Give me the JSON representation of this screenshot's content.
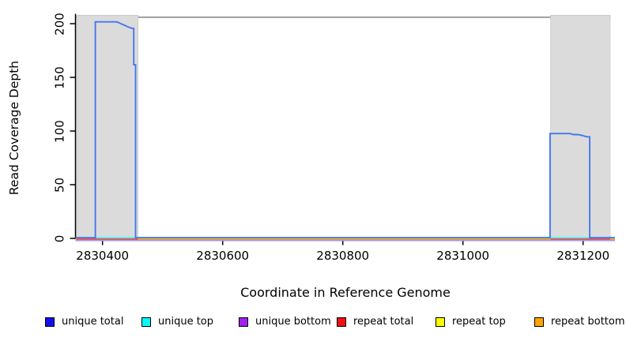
{
  "chart_data": {
    "type": "line",
    "title": "",
    "xlabel": "Coordinate in Reference Genome",
    "ylabel": "Read Coverage Depth",
    "xlim": [
      2830355,
      2831253
    ],
    "ylim": [
      0,
      206
    ],
    "x_ticks": [
      2830400,
      2830600,
      2830800,
      2831000,
      2831200
    ],
    "y_ticks": [
      0,
      50,
      100,
      150,
      200
    ],
    "grid": false,
    "legend_position": "bottom",
    "colors": {
      "unique_total_line": "#4478EF",
      "repeat_total_line": "#ED5252",
      "unique_bottom_line": "#AB93EB",
      "region_fill": "#DBDBDB",
      "region_stroke": "#C6C6C6",
      "top_border": "#8A8A8A",
      "axis": "#000000"
    },
    "repeat_regions": [
      [
        2830357,
        2830459
      ],
      [
        2831146,
        2831245
      ]
    ],
    "series": [
      {
        "name": "unique total",
        "points": [
          [
            2830355,
            0
          ],
          [
            2830388,
            0
          ],
          [
            2830388,
            201
          ],
          [
            2830424,
            201
          ],
          [
            2830428,
            200
          ],
          [
            2830432,
            199
          ],
          [
            2830436,
            198
          ],
          [
            2830440,
            197
          ],
          [
            2830444,
            196
          ],
          [
            2830449,
            195
          ],
          [
            2830452,
            195
          ],
          [
            2830452,
            161
          ],
          [
            2830455,
            161
          ],
          [
            2830455,
            0
          ],
          [
            2831145,
            0
          ],
          [
            2831145,
            97
          ],
          [
            2831178,
            97
          ],
          [
            2831184,
            96
          ],
          [
            2831192,
            96
          ],
          [
            2831200,
            95
          ],
          [
            2831206,
            94
          ],
          [
            2831211,
            94
          ],
          [
            2831211,
            0
          ],
          [
            2831253,
            0
          ]
        ]
      },
      {
        "name": "unique top",
        "points": [
          [
            2830355,
            0
          ],
          [
            2831253,
            0
          ]
        ]
      },
      {
        "name": "unique bottom",
        "points": [
          [
            2830355,
            0
          ],
          [
            2831253,
            0
          ]
        ]
      },
      {
        "name": "repeat total",
        "segments": [
          [
            [
              2830357,
              0
            ],
            [
              2830459,
              0
            ]
          ],
          [
            [
              2831146,
              0
            ],
            [
              2831245,
              0
            ]
          ]
        ]
      },
      {
        "name": "repeat top",
        "points": [
          [
            2830355,
            0
          ],
          [
            2831253,
            0
          ]
        ]
      },
      {
        "name": "repeat bottom",
        "points": [
          [
            2830355,
            0
          ],
          [
            2831253,
            0
          ]
        ]
      }
    ],
    "legend": [
      {
        "label": "unique total",
        "color": "#1111EE"
      },
      {
        "label": "unique top",
        "color": "#00FFFF"
      },
      {
        "label": "unique bottom",
        "color": "#A020F0"
      },
      {
        "label": "repeat total",
        "color": "#EE1111"
      },
      {
        "label": "repeat top",
        "color": "#FFFF00"
      },
      {
        "label": "repeat bottom",
        "color": "#FFA500"
      }
    ]
  }
}
